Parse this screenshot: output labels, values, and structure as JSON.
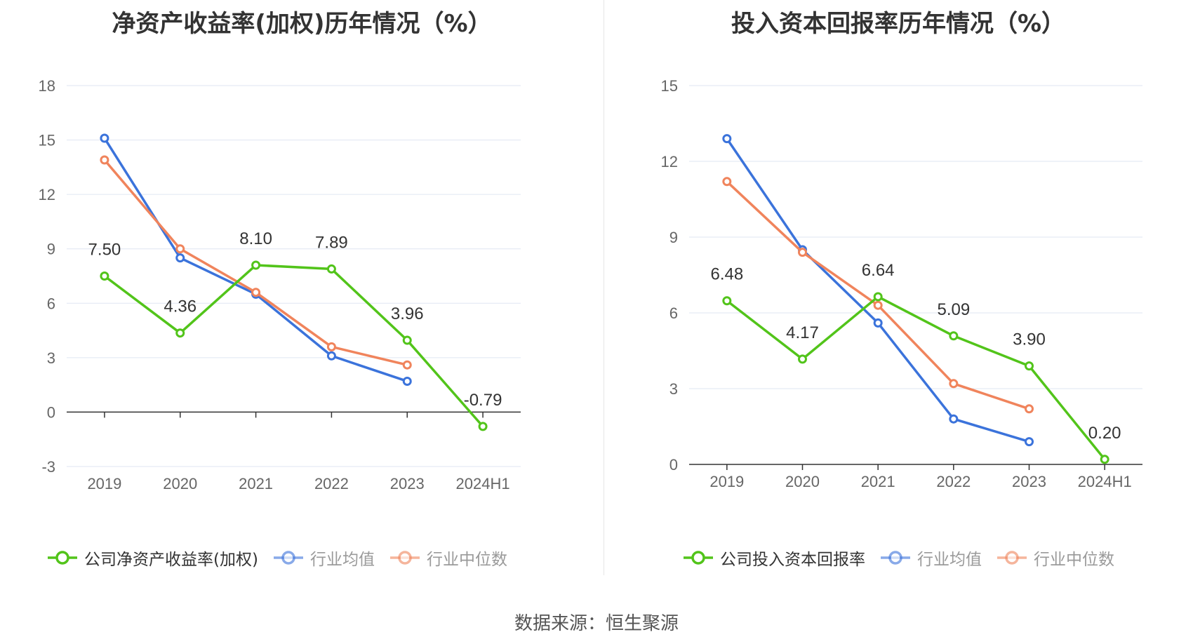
{
  "footer": {
    "source": "数据来源：恒生聚源"
  },
  "chart_data": [
    {
      "type": "line",
      "title": "净资产收益率(加权)历年情况（%）",
      "categories": [
        "2019",
        "2020",
        "2021",
        "2022",
        "2023",
        "2024H1"
      ],
      "ylim": [
        -3,
        18
      ],
      "yticks": [
        -3,
        0,
        3,
        6,
        9,
        12,
        15,
        18
      ],
      "grid": true,
      "legend_position": "bottom",
      "series": [
        {
          "name": "公司净资产收益率(加权)",
          "color": "#52c41a",
          "values": [
            7.5,
            4.36,
            8.1,
            7.89,
            3.96,
            -0.79
          ],
          "labels": [
            "7.50",
            "4.36",
            "8.10",
            "7.89",
            "3.96",
            "-0.79"
          ]
        },
        {
          "name": "行业均值",
          "color": "#3b73db",
          "values": [
            15.1,
            8.5,
            6.5,
            3.1,
            1.7,
            null
          ]
        },
        {
          "name": "行业中位数",
          "color": "#f0845c",
          "values": [
            13.9,
            9.0,
            6.6,
            3.6,
            2.6,
            null
          ]
        }
      ]
    },
    {
      "type": "line",
      "title": "投入资本回报率历年情况（%）",
      "categories": [
        "2019",
        "2020",
        "2021",
        "2022",
        "2023",
        "2024H1"
      ],
      "ylim": [
        0,
        15
      ],
      "yticks": [
        0,
        3,
        6,
        9,
        12,
        15
      ],
      "grid": true,
      "legend_position": "bottom",
      "series": [
        {
          "name": "公司投入资本回报率",
          "color": "#52c41a",
          "values": [
            6.48,
            4.17,
            6.64,
            5.09,
            3.9,
            0.2
          ],
          "labels": [
            "6.48",
            "4.17",
            "6.64",
            "5.09",
            "3.90",
            "0.20"
          ]
        },
        {
          "name": "行业均值",
          "color": "#3b73db",
          "values": [
            12.9,
            8.5,
            5.6,
            1.8,
            0.9,
            null
          ]
        },
        {
          "name": "行业中位数",
          "color": "#f0845c",
          "values": [
            11.2,
            8.4,
            6.3,
            3.2,
            2.2,
            null
          ]
        }
      ]
    }
  ]
}
